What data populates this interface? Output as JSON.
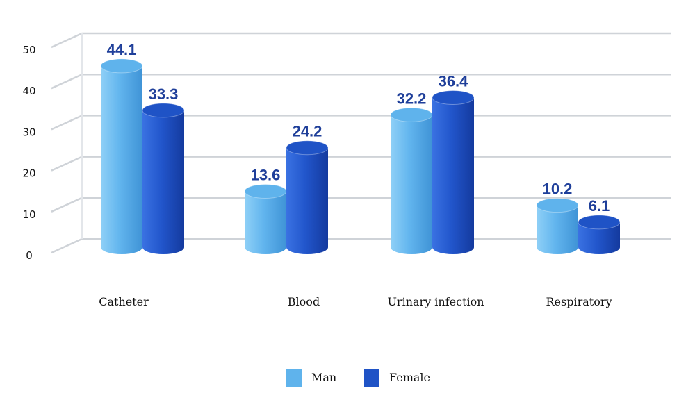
{
  "chart_data": {
    "type": "bar",
    "categories": [
      "Catheter",
      "Blood",
      "Urinary infection",
      "Respiratory"
    ],
    "series": [
      {
        "name": "Man",
        "values": [
          44.1,
          13.6,
          32.2,
          10.2
        ],
        "color": "#5fb3ec"
      },
      {
        "name": "Female",
        "values": [
          33.3,
          24.2,
          36.4,
          6.1
        ],
        "color": "#1f53c6"
      }
    ],
    "value_labels": [
      [
        "44.1",
        "13.6",
        "32.2",
        "10.2"
      ],
      [
        "33.3",
        "24.2",
        "36.4",
        "6.1"
      ]
    ],
    "yticks": [
      "0",
      "10",
      "20",
      "30",
      "40",
      "50"
    ],
    "ylim": [
      0,
      50
    ],
    "grid": true,
    "style": "3d-cylinder",
    "legend_position": "bottom-center",
    "label_color": "#1f3f9a"
  }
}
